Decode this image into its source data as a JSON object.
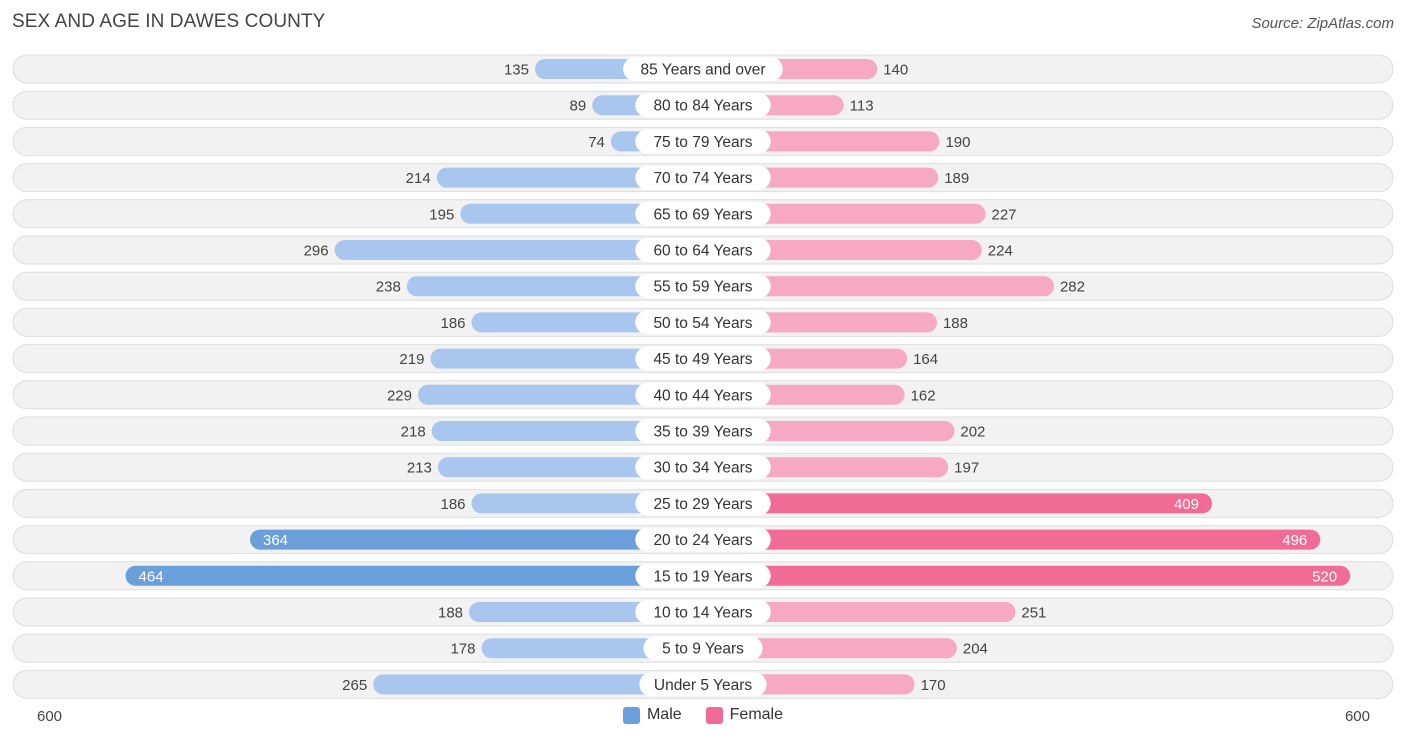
{
  "header": {
    "title": "SEX AND AGE IN DAWES COUNTY",
    "source": "Source: ZipAtlas.com"
  },
  "colors": {
    "male_light": "#a9c7ee",
    "male_dark": "#6a9fdc",
    "female_light": "#f7a8c2",
    "female_dark": "#f06b95",
    "row_bg": "#f2f2f2",
    "row_border": "#dedede"
  },
  "legend": {
    "male_label": "Male",
    "female_label": "Female"
  },
  "axis": {
    "left_label": "600",
    "right_label": "600"
  },
  "chart_data": {
    "type": "bar",
    "orientation": "horizontal-diverging",
    "title": "SEX AND AGE IN DAWES COUNTY",
    "xlim": [
      -600,
      600
    ],
    "categories": [
      "85 Years and over",
      "80 to 84 Years",
      "75 to 79 Years",
      "70 to 74 Years",
      "65 to 69 Years",
      "60 to 64 Years",
      "55 to 59 Years",
      "50 to 54 Years",
      "45 to 49 Years",
      "40 to 44 Years",
      "35 to 39 Years",
      "30 to 34 Years",
      "25 to 29 Years",
      "20 to 24 Years",
      "15 to 19 Years",
      "10 to 14 Years",
      "5 to 9 Years",
      "Under 5 Years"
    ],
    "series": [
      {
        "name": "Male",
        "values": [
          135,
          89,
          74,
          214,
          195,
          296,
          238,
          186,
          219,
          229,
          218,
          213,
          186,
          364,
          464,
          188,
          178,
          265
        ]
      },
      {
        "name": "Female",
        "values": [
          140,
          113,
          190,
          189,
          227,
          224,
          282,
          188,
          164,
          162,
          202,
          197,
          409,
          496,
          520,
          251,
          204,
          170
        ]
      }
    ],
    "legend_position": "bottom-center"
  }
}
